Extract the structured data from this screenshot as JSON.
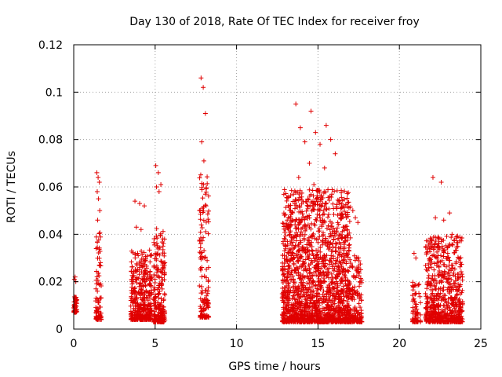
{
  "chart_data": {
    "type": "scatter",
    "title": "Day 130 of 2018, Rate Of TEC Index for receiver froy",
    "xlabel": "GPS time / hours",
    "ylabel": "ROTI / TECUs",
    "xlim": [
      0,
      25
    ],
    "ylim": [
      0,
      0.12
    ],
    "x_ticks": [
      0,
      5,
      10,
      15,
      20,
      25
    ],
    "x_tick_labels": [
      "0",
      "5",
      "10",
      "15",
      "20",
      "25"
    ],
    "y_ticks": [
      0,
      0.02,
      0.04,
      0.06,
      0.08,
      0.1,
      0.12
    ],
    "y_tick_labels": [
      "0",
      "0.02",
      "0.04",
      "0.06",
      "0.08",
      "0.1",
      "0.12"
    ],
    "grid": true,
    "marker": "+",
    "color": "#e00000",
    "series": [
      {
        "name": "ROTI",
        "clusters": [
          {
            "x_range": [
              0.0,
              0.2
            ],
            "count": 40,
            "y_min": 0.007,
            "y_max": 0.022,
            "tops": [
              0.021,
              0.022,
              0.02
            ]
          },
          {
            "x_range": [
              1.35,
              1.7
            ],
            "count": 90,
            "y_min": 0.004,
            "y_max": 0.066,
            "tops": [
              0.066,
              0.064,
              0.062,
              0.058,
              0.055,
              0.05,
              0.046
            ]
          },
          {
            "x_range": [
              3.5,
              4.8
            ],
            "count": 380,
            "y_min": 0.004,
            "y_max": 0.054,
            "tops": [
              0.054,
              0.053,
              0.052,
              0.043,
              0.042
            ]
          },
          {
            "x_range": [
              4.9,
              5.6
            ],
            "count": 220,
            "y_min": 0.003,
            "y_max": 0.069,
            "tops": [
              0.069,
              0.066,
              0.061,
              0.06,
              0.058
            ]
          },
          {
            "x_range": [
              7.7,
              8.3
            ],
            "count": 140,
            "y_min": 0.005,
            "y_max": 0.106,
            "tops": [
              0.106,
              0.102,
              0.091,
              0.079,
              0.071,
              0.052,
              0.051
            ]
          },
          {
            "x_range": [
              12.8,
              17.0
            ],
            "count": 1700,
            "y_min": 0.003,
            "y_max": 0.095,
            "tops": [
              0.095,
              0.092,
              0.086,
              0.085,
              0.083,
              0.08,
              0.079,
              0.078,
              0.074,
              0.07,
              0.068,
              0.064,
              0.061
            ]
          },
          {
            "x_range": [
              17.0,
              17.7
            ],
            "count": 140,
            "y_min": 0.003,
            "y_max": 0.05,
            "tops": [
              0.05,
              0.047,
              0.045
            ]
          },
          {
            "x_range": [
              20.8,
              21.3
            ],
            "count": 70,
            "y_min": 0.003,
            "y_max": 0.032,
            "tops": [
              0.032,
              0.03
            ]
          },
          {
            "x_range": [
              21.6,
              23.9
            ],
            "count": 640,
            "y_min": 0.003,
            "y_max": 0.064,
            "tops": [
              0.064,
              0.062,
              0.049,
              0.047,
              0.046,
              0.04
            ]
          }
        ]
      }
    ]
  }
}
